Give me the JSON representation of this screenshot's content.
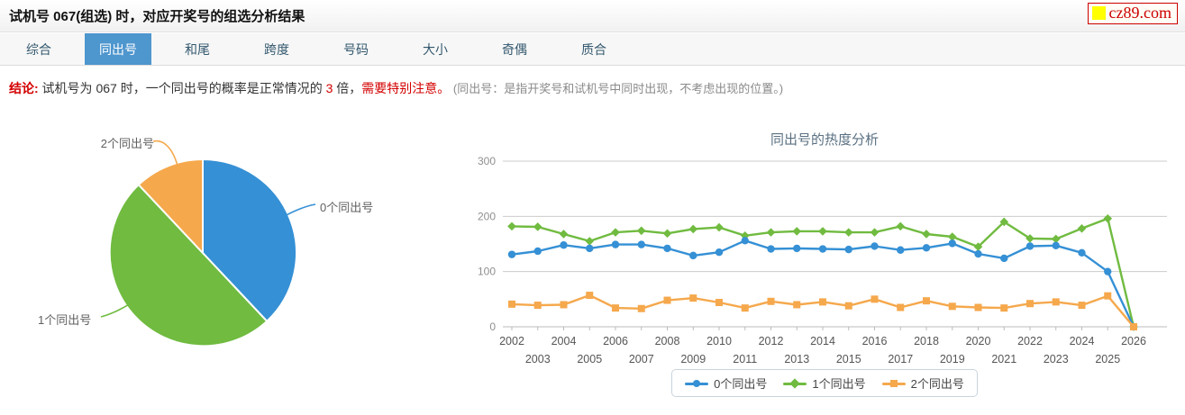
{
  "header": {
    "title": "试机号 067(组选) 时，对应开奖号的组选分析结果",
    "logo_text": "cz89.com",
    "logo_color": "#cc0000",
    "logo_square_color": "#ffff00"
  },
  "tabs": {
    "active_color": "#4e96ce",
    "items": [
      {
        "label": "综合",
        "active": false
      },
      {
        "label": "同出号",
        "active": true
      },
      {
        "label": "和尾",
        "active": false
      },
      {
        "label": "跨度",
        "active": false
      },
      {
        "label": "号码",
        "active": false
      },
      {
        "label": "大小",
        "active": false
      },
      {
        "label": "奇偶",
        "active": false
      },
      {
        "label": "质合",
        "active": false
      }
    ]
  },
  "conclusion": {
    "prefix": "结论:",
    "text_before": " 试机号为 067 时，一个同出号的概率是正常情况的 ",
    "multiplier": "3",
    "text_mid": " 倍，",
    "warning": "需要特别注意。",
    "note": " (同出号：是指开奖号和试机号中同时出现，不考虑出现的位置。)"
  },
  "chart_data": [
    {
      "type": "pie",
      "labels": [
        "0个同出号",
        "1个同出号",
        "2个同出号"
      ],
      "values": [
        38,
        50,
        12
      ],
      "colors": [
        "#3590d5",
        "#70bb40",
        "#f5a84c"
      ],
      "start_angle": "top",
      "direction": "clockwise"
    },
    {
      "type": "line",
      "title": "同出号的热度分析",
      "categories": [
        2002,
        2003,
        2004,
        2005,
        2006,
        2007,
        2008,
        2009,
        2010,
        2011,
        2012,
        2013,
        2014,
        2015,
        2016,
        2017,
        2018,
        2019,
        2020,
        2021,
        2022,
        2023,
        2024,
        2025,
        2026
      ],
      "series": [
        {
          "name": "0个同出号",
          "color": "#3590d5",
          "marker": "circle",
          "values": [
            131,
            137,
            148,
            142,
            149,
            149,
            142,
            129,
            135,
            156,
            141,
            142,
            141,
            140,
            146,
            139,
            143,
            151,
            132,
            124,
            146,
            147,
            134,
            100,
            0
          ]
        },
        {
          "name": "1个同出号",
          "color": "#70bb40",
          "marker": "diamond",
          "values": [
            182,
            181,
            168,
            155,
            171,
            174,
            169,
            177,
            180,
            165,
            171,
            173,
            173,
            171,
            171,
            182,
            168,
            163,
            145,
            190,
            160,
            159,
            178,
            196,
            0
          ]
        },
        {
          "name": "2个同出号",
          "color": "#f5a84c",
          "marker": "square",
          "values": [
            41,
            39,
            40,
            57,
            34,
            33,
            48,
            52,
            44,
            34,
            46,
            40,
            45,
            38,
            50,
            35,
            47,
            37,
            35,
            34,
            42,
            45,
            39,
            56,
            0
          ]
        }
      ],
      "ylim": [
        0,
        300
      ],
      "yticks": [
        0,
        100,
        200,
        300
      ],
      "grid": true,
      "legend_position": "bottom"
    }
  ]
}
